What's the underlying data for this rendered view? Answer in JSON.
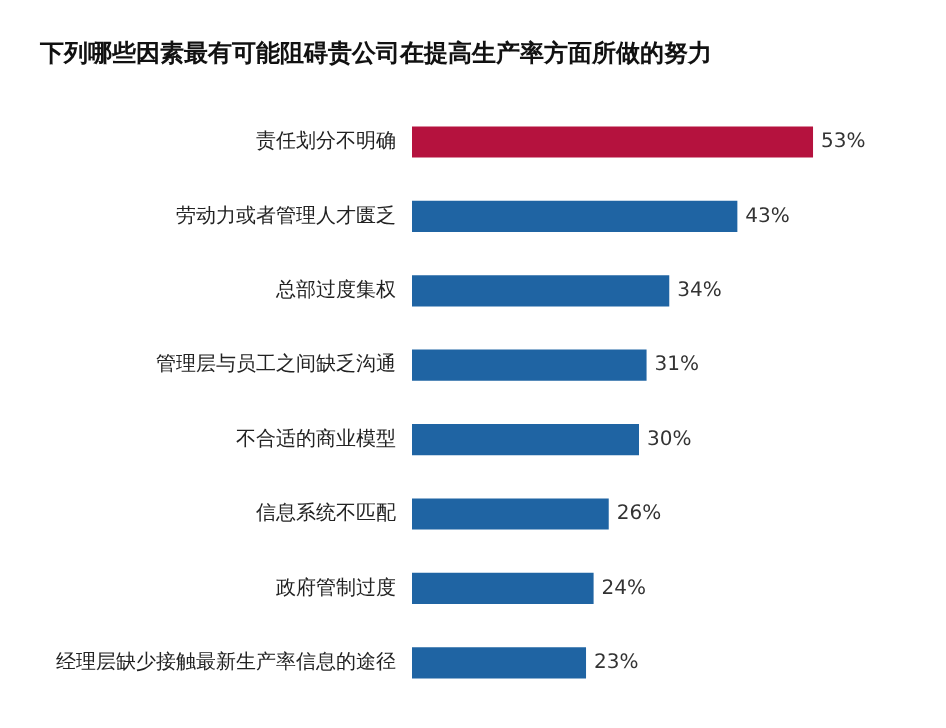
{
  "chart_data": {
    "type": "bar",
    "orientation": "horizontal",
    "title": "下列哪些因素最有可能阻碍贵公司在提高生产率方面所做的努力",
    "categories": [
      "责任划分不明确",
      "劳动力或者管理人才匮乏",
      "总部过度集权",
      "管理层与员工之间缺乏沟通",
      "不合适的商业模型",
      "信息系统不匹配",
      "政府管制过度",
      "经理层缺少接触最新生产率信息的途径"
    ],
    "values": [
      53,
      43,
      34,
      31,
      30,
      26,
      24,
      23
    ],
    "colors": [
      "#b5123e",
      "#1f64a3",
      "#1f64a3",
      "#1f64a3",
      "#1f64a3",
      "#1f64a3",
      "#1f64a3",
      "#1f64a3"
    ],
    "value_labels": [
      "53%",
      "43%",
      "34%",
      "31%",
      "30%",
      "26%",
      "24%",
      "23%"
    ],
    "grid": false,
    "legend": false
  }
}
